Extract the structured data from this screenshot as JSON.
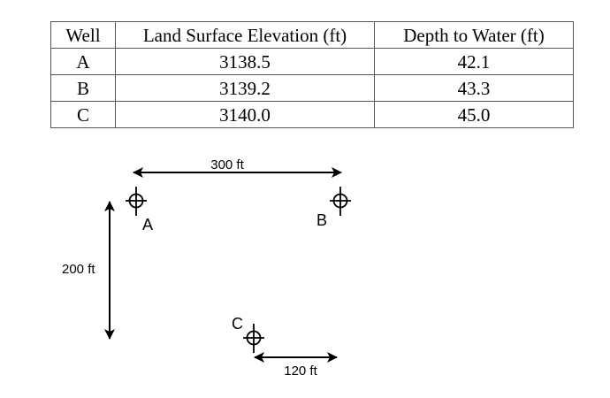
{
  "table": {
    "headers": [
      "Well",
      "Land Surface Elevation (ft)",
      "Depth to Water (ft)"
    ],
    "rows": [
      {
        "well": "A",
        "elevation": "3138.5",
        "depth": "42.1"
      },
      {
        "well": "B",
        "elevation": "3139.2",
        "depth": "43.3"
      },
      {
        "well": "C",
        "elevation": "3140.0",
        "depth": "45.0"
      }
    ]
  },
  "diagram": {
    "dimensions": {
      "horizontal_top": "300 ft",
      "vertical_left": "200 ft",
      "horizontal_bottom": "120 ft"
    },
    "wells": {
      "a": "A",
      "b": "B",
      "c": "C"
    }
  }
}
